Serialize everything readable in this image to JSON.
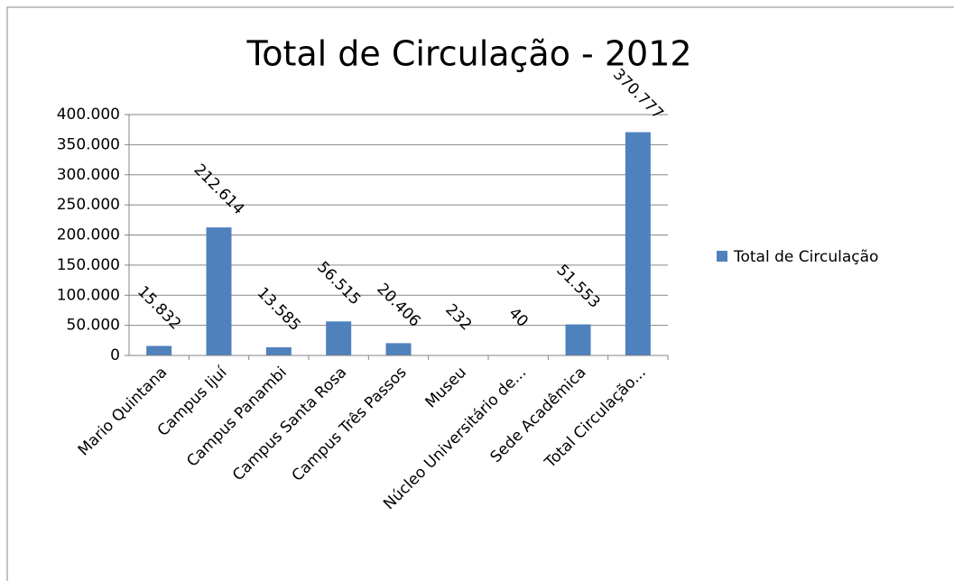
{
  "chart_data": {
    "type": "bar",
    "title": "Total de Circulação - 2012",
    "categories": [
      "Mario Quintana",
      "Campus Ijuí",
      "Campus Panambi",
      "Campus Santa Rosa",
      "Campus Três Passos",
      "Museu",
      "Núcleo Universitário de...",
      "Sede Acadêmica",
      "Total Circulação..."
    ],
    "series": [
      {
        "name": "Total de Circulação",
        "color": "#4f81bd",
        "values": [
          15832,
          212614,
          13585,
          56515,
          20406,
          232,
          40,
          51553,
          370777
        ],
        "value_labels": [
          "15.832",
          "212.614",
          "13.585",
          "56.515",
          "20.406",
          "232",
          "40",
          "51.553",
          "370.777"
        ]
      }
    ],
    "ylim": [
      0,
      400000
    ],
    "yticks": [
      0,
      {
        "value": 50000,
        "label": "50.000"
      },
      {
        "value": 100000,
        "label": "100.000"
      },
      {
        "value": 150000,
        "label": "150.000"
      },
      {
        "value": 200000,
        "label": "200.000"
      },
      {
        "value": 250000,
        "label": "250.000"
      },
      {
        "value": 300000,
        "label": "300.000"
      },
      {
        "value": 350000,
        "label": "350.000"
      },
      {
        "value": 400000,
        "label": "400.000"
      }
    ],
    "grid": true,
    "legend": "right"
  }
}
